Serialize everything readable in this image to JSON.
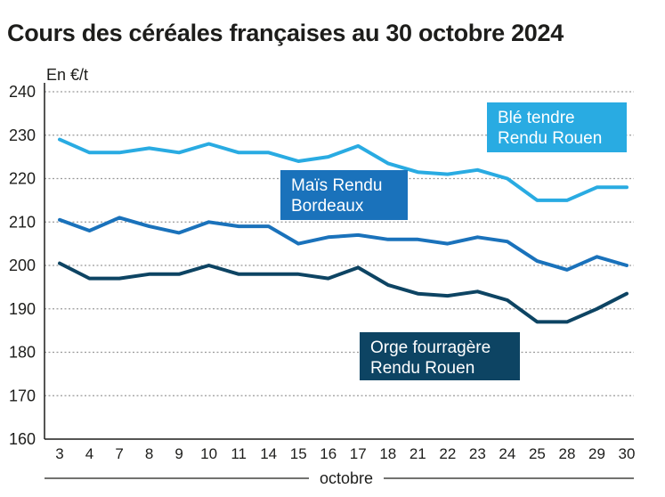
{
  "chart_data": {
    "type": "line",
    "title": "Cours des céréales françaises au 30 octobre 2024",
    "ylabel": "En €/t",
    "xlabel": "octobre",
    "ylim": [
      160,
      240
    ],
    "yticks": [
      "160",
      "170",
      "180",
      "190",
      "200",
      "210",
      "220",
      "230",
      "240"
    ],
    "grid": true,
    "categories": [
      "3",
      "4",
      "7",
      "8",
      "9",
      "10",
      "11",
      "14",
      "15",
      "16",
      "17",
      "18",
      "21",
      "22",
      "23",
      "24",
      "25",
      "28",
      "29",
      "30"
    ],
    "series": [
      {
        "name": "Blé tendre Rendu Rouen",
        "label_lines": [
          "Blé tendre",
          "Rendu Rouen"
        ],
        "color": "#29abe2",
        "values": [
          229,
          226,
          226,
          227,
          226,
          228,
          226,
          226,
          224,
          225,
          227.5,
          223.5,
          221.5,
          221,
          222,
          220,
          215,
          215,
          218,
          218
        ]
      },
      {
        "name": "Maïs Rendu Bordeaux",
        "label_lines": [
          "Maïs Rendu",
          "Bordeaux"
        ],
        "color": "#1a72bb",
        "values": [
          210.5,
          208,
          211,
          209,
          207.5,
          210,
          209,
          209,
          205,
          206.5,
          207,
          206,
          206,
          205,
          206.5,
          205.5,
          201,
          199,
          202,
          200
        ]
      },
      {
        "name": "Orge fourragère Rendu Rouen",
        "label_lines": [
          "Orge fourragère",
          "Rendu Rouen"
        ],
        "color": "#0d4463",
        "values": [
          200.5,
          197,
          197,
          198,
          198,
          200,
          198,
          198,
          198,
          197,
          199.5,
          195.5,
          193.5,
          193,
          194,
          192,
          187,
          187,
          190,
          193.5
        ]
      }
    ]
  }
}
